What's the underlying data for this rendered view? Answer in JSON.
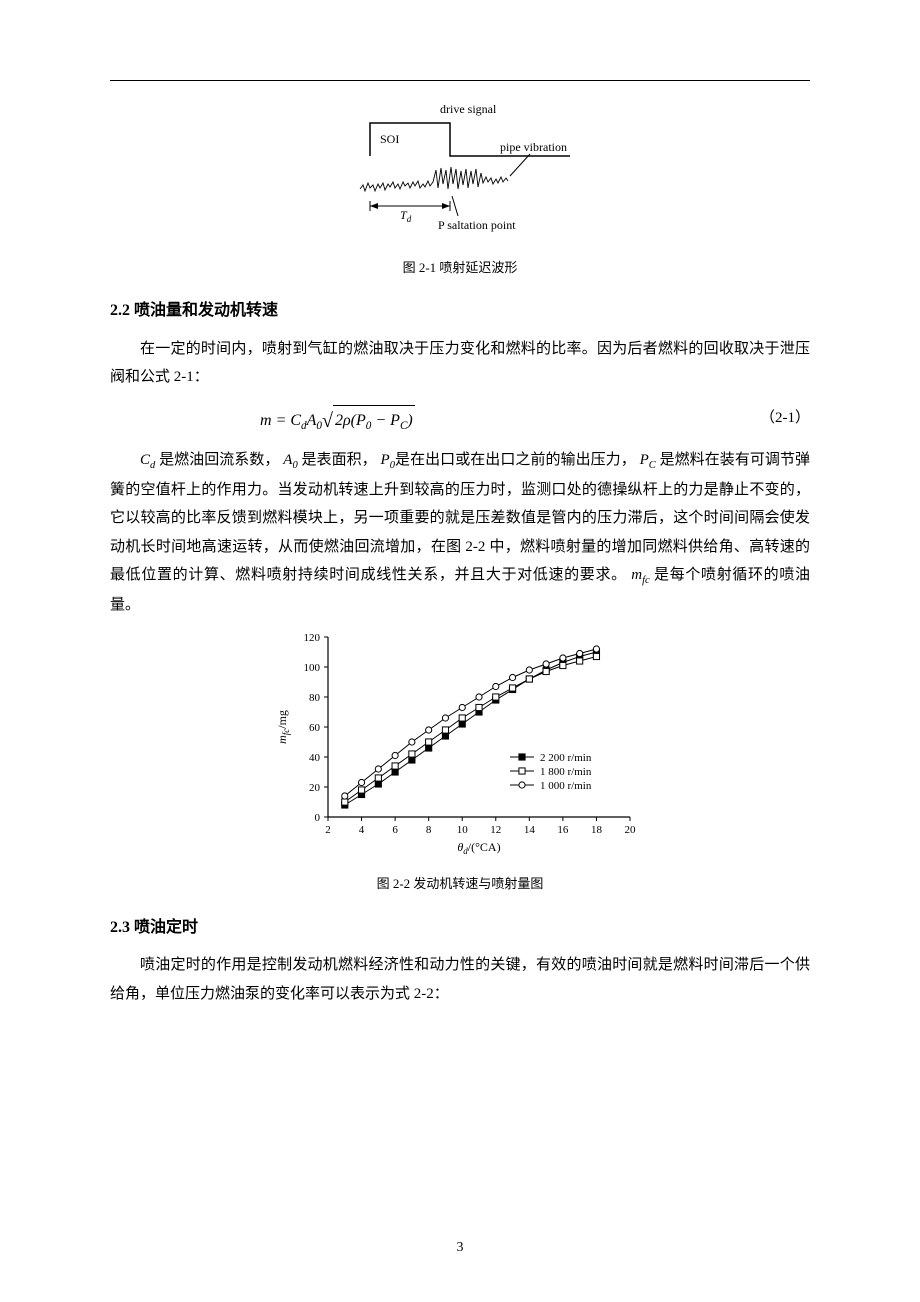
{
  "figure1": {
    "type": "waveform-diagram",
    "labels": {
      "drive_signal": "drive signal",
      "soi": "SOI",
      "pipe_vibration": "pipe vibration",
      "Td": "T",
      "Td_sub": "d",
      "p_saltation": "P saltation point"
    },
    "caption": "图 2-1  喷射延迟波形",
    "colors": {
      "stroke": "#000000",
      "bg": "#ffffff"
    },
    "font": {
      "family": "Times New Roman",
      "size_pt": 11
    }
  },
  "section22": {
    "heading": "2.2  喷油量和发动机转速",
    "para1": "在一定的时间内，喷射到气缸的燃油取决于压力变化和燃料的比率。因为后者燃料的回收取决于泄压阀和公式 2-1：",
    "equation": {
      "lhs": "m",
      "eq": " = ",
      "rhs_prefix": "C",
      "rhs_prefix_sub": "d",
      "A": "A",
      "A_sub": "0",
      "sqrt_inner_prefix": "2ρ",
      "P0": "P",
      "P0_sub": "0",
      "minus": " − ",
      "Pc": "P",
      "Pc_sub": "C",
      "number": "（2-1）"
    },
    "para2_parts": {
      "t1": " 是燃油回流系数，",
      "t2": " 是表面积，",
      "t3": "是在出口或在出口之前的输出压力，",
      "t4": " 是燃料在装有可调节弹簧的空值杆上的作用力。当发动机转速上升到较高的压力时，监测口处的德操纵杆上的力是静止不变的，它以较高的比率反馈到燃料模块上，另一项重要的就是压差数值是管内的压力滞后，这个时间间隔会使发动机长时间地高速运转，从而使燃油回流增加，在图 2-2 中，燃料喷射量的增加同燃料供给角、高转速的最低位置的计算、燃料喷射持续时间成线性关系，并且大于对低速的要求。",
      "t5": " 是每个喷射循环的喷油量。",
      "Cd": "C",
      "Cd_sub": "d",
      "A0": "A",
      "A0_sub": "0",
      "P0": "P",
      "P0_sub": "0",
      "Pc": "P",
      "Pc_sub": "C",
      "mfc": "m",
      "mfc_sub": "fc"
    }
  },
  "figure2": {
    "type": "line",
    "caption": "图 2-2 发动机转速与喷射量图",
    "xlabel": "θ",
    "xlabel_sub": "d",
    "xlabel_unit": "/(°CA)",
    "ylabel": "m",
    "ylabel_sub": "fc",
    "ylabel_unit": "/mg",
    "xlim": [
      2,
      20
    ],
    "ylim": [
      0,
      120
    ],
    "xticks": [
      2,
      4,
      6,
      8,
      10,
      12,
      14,
      16,
      18,
      20
    ],
    "yticks": [
      0,
      20,
      40,
      60,
      80,
      100,
      120
    ],
    "series": [
      {
        "name": "2 200 r/min",
        "marker": "square-filled",
        "color": "#000000",
        "x": [
          3,
          4,
          5,
          6,
          7,
          8,
          9,
          10,
          11,
          12,
          13,
          14,
          15,
          16,
          17,
          18
        ],
        "y": [
          8,
          15,
          22,
          30,
          38,
          46,
          54,
          62,
          70,
          78,
          85,
          92,
          98,
          103,
          107,
          110
        ]
      },
      {
        "name": "1 800 r/min",
        "marker": "square-open",
        "color": "#000000",
        "x": [
          3,
          4,
          5,
          6,
          7,
          8,
          9,
          10,
          11,
          12,
          13,
          14,
          15,
          16,
          17,
          18
        ],
        "y": [
          10,
          18,
          26,
          34,
          42,
          50,
          58,
          66,
          73,
          80,
          86,
          92,
          97,
          101,
          104,
          107
        ]
      },
      {
        "name": "1 000 r/min",
        "marker": "circle-open",
        "color": "#000000",
        "x": [
          3,
          4,
          5,
          6,
          7,
          8,
          9,
          10,
          11,
          12,
          13,
          14,
          15,
          16,
          17,
          18
        ],
        "y": [
          14,
          23,
          32,
          41,
          50,
          58,
          66,
          73,
          80,
          87,
          93,
          98,
          102,
          106,
          109,
          112
        ]
      }
    ],
    "legend_position": "right-inside",
    "line_width": 1,
    "marker_size": 4,
    "background_color": "#ffffff",
    "axis_color": "#000000",
    "font": {
      "family": "Times New Roman",
      "size_pt": 11
    }
  },
  "section23": {
    "heading": "2.3  喷油定时",
    "para1": "喷油定时的作用是控制发动机燃料经济性和动力性的关键，有效的喷油时间就是燃料时间滞后一个供给角，单位压力燃油泵的变化率可以表示为式 2-2："
  },
  "page_number": "3"
}
